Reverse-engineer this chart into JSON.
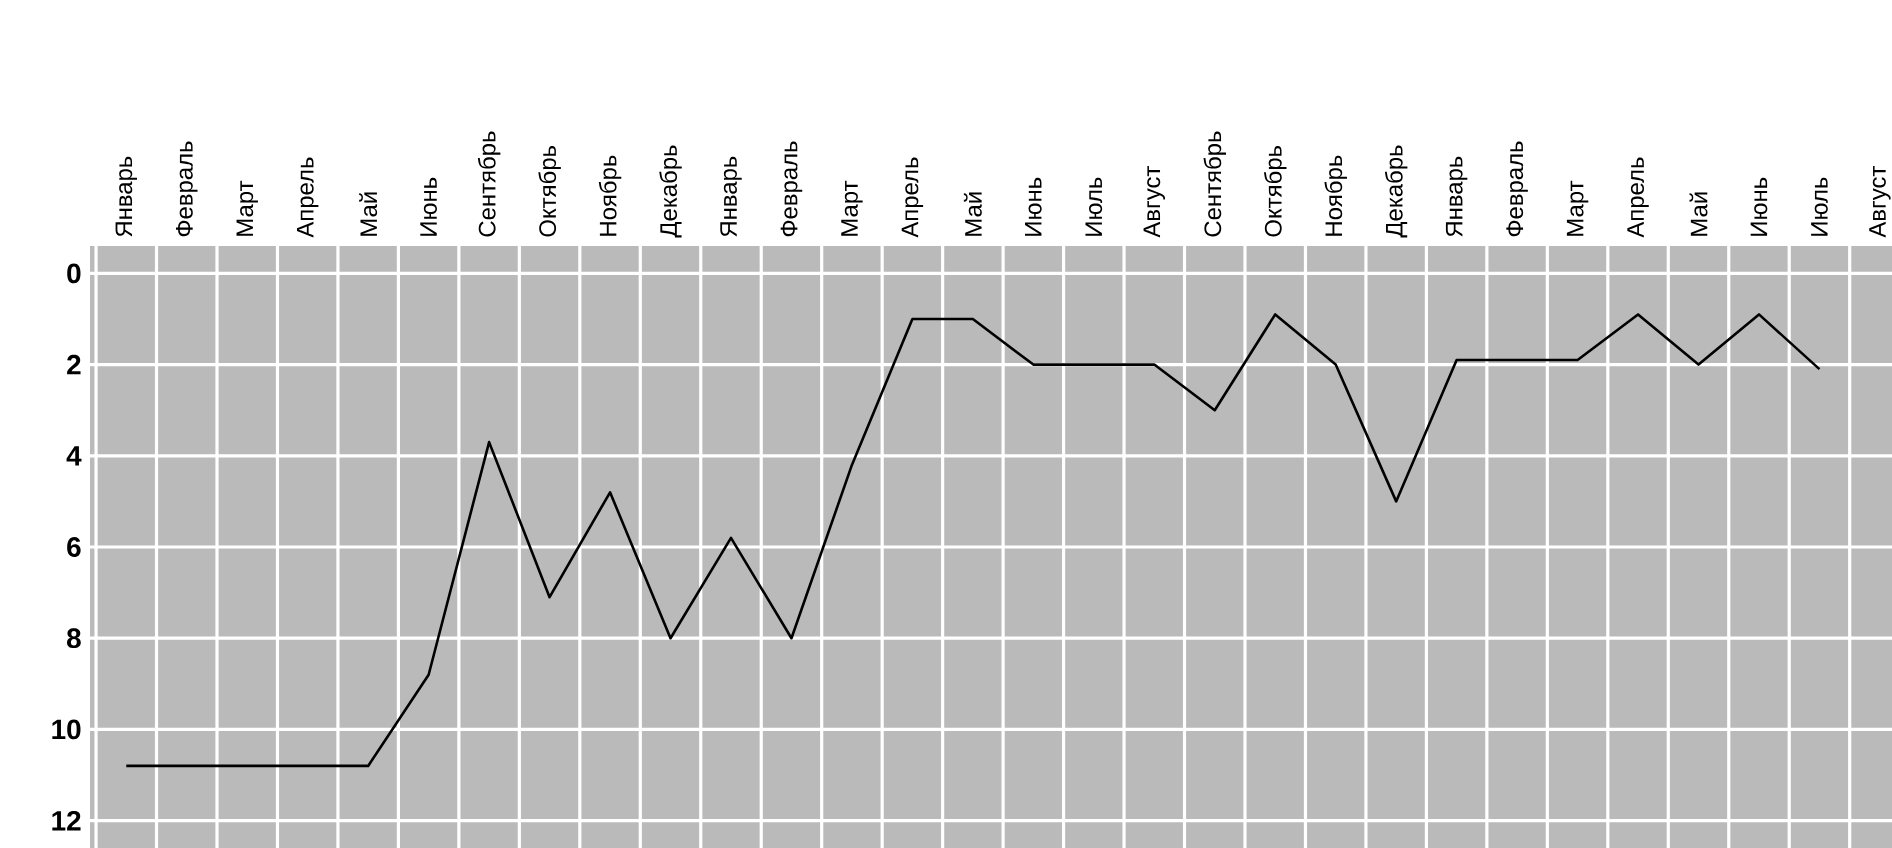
{
  "chart_data": {
    "type": "line",
    "categories": [
      "Январь",
      "Февраль",
      "Март",
      "Апрель",
      "Май",
      "Июнь",
      "Сентябрь",
      "Октябрь",
      "Ноябрь",
      "Декабрь",
      "Январь",
      "Февраль",
      "Март",
      "Апрель",
      "Май",
      "Июнь",
      "Июль",
      "Август",
      "Сентябрь",
      "Октябрь",
      "Ноябрь",
      "Декабрь",
      "Январь",
      "Февраль",
      "Март",
      "Апрель",
      "Май",
      "Июнь",
      "Июль",
      "Август"
    ],
    "series": [
      {
        "color": "#000000",
        "values": [
          10.8,
          10.8,
          10.8,
          10.8,
          10.8,
          8.8,
          3.7,
          7.1,
          4.8,
          8.0,
          5.8,
          8.0,
          4.2,
          1.0,
          1.0,
          2.0,
          2.0,
          2.0,
          3.0,
          0.9,
          2.0,
          5.0,
          1.9,
          1.9,
          1.9,
          0.9,
          2.0,
          0.9,
          2.1,
          null
        ]
      }
    ],
    "ylim": [
      12.6,
      -0.6
    ],
    "yticks": [
      0,
      2,
      4,
      6,
      8,
      10,
      12
    ],
    "grid": true,
    "legend": false,
    "marker": "none",
    "line_style": "solid"
  }
}
